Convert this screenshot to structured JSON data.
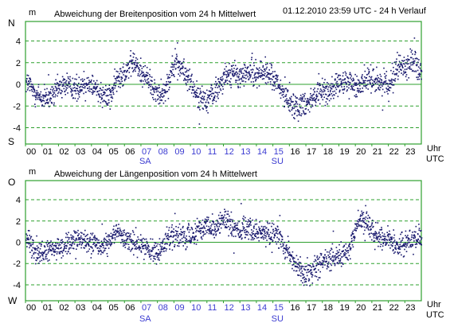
{
  "header": {
    "timestamp": "01.12.2010  23:59 UTC - 24 h Verlauf"
  },
  "colors": {
    "background": "#ffffff",
    "plot_border": "#2ea02e",
    "grid_dashed": "#2ea02e",
    "zero_line": "#2ea02e",
    "points": "#1a1a6e",
    "axis_text": "#000000",
    "weekend_text": "#3b3bd1"
  },
  "chart_data": [
    {
      "type": "scatter",
      "title": "Abweichung der Breitenposition vom 24 h Mittelwert",
      "ylabel": "m",
      "direction_top": "N",
      "direction_bottom": "S",
      "xlabel": [
        "Uhr",
        "UTC"
      ],
      "xlim": [
        0,
        24
      ],
      "ylim": [
        -5.5,
        5.8
      ],
      "yticks": [
        4,
        2,
        0,
        -2,
        -4
      ],
      "gridlines": [
        4,
        2,
        0,
        -2,
        -4
      ],
      "xticks": [
        "00",
        "01",
        "02",
        "03",
        "04",
        "05",
        "06",
        "07",
        "08",
        "09",
        "10",
        "11",
        "12",
        "13",
        "14",
        "15",
        "16",
        "17",
        "18",
        "19",
        "20",
        "21",
        "22",
        "23"
      ],
      "weekend_hours": [
        7,
        8,
        9,
        10,
        11,
        12,
        13,
        14,
        15
      ],
      "day_markers": [
        {
          "hour": 7,
          "label": "SA"
        },
        {
          "hour": 15,
          "label": "SU"
        }
      ],
      "series": [
        {
          "trend": [
            [
              0.0,
              0.4
            ],
            [
              0.5,
              -0.6
            ],
            [
              1.0,
              -1.3
            ],
            [
              1.5,
              -1.2
            ],
            [
              2.0,
              -0.2
            ],
            [
              2.5,
              0.1
            ],
            [
              3.0,
              -0.4
            ],
            [
              3.5,
              0.2
            ],
            [
              4.0,
              0.0
            ],
            [
              4.5,
              -0.6
            ],
            [
              5.0,
              -1.2
            ],
            [
              5.5,
              0.4
            ],
            [
              6.0,
              1.4
            ],
            [
              6.5,
              2.0
            ],
            [
              7.0,
              1.2
            ],
            [
              7.5,
              0.3
            ],
            [
              8.0,
              -1.0
            ],
            [
              8.5,
              -0.2
            ],
            [
              9.0,
              2.2
            ],
            [
              9.5,
              1.3
            ],
            [
              10.0,
              0.2
            ],
            [
              10.5,
              -1.4
            ],
            [
              11.0,
              -1.2
            ],
            [
              11.5,
              -0.6
            ],
            [
              12.0,
              0.8
            ],
            [
              12.5,
              1.1
            ],
            [
              13.0,
              0.7
            ],
            [
              13.5,
              1.2
            ],
            [
              14.0,
              1.0
            ],
            [
              14.5,
              1.3
            ],
            [
              15.0,
              0.6
            ],
            [
              15.5,
              -0.6
            ],
            [
              16.0,
              -1.6
            ],
            [
              16.5,
              -2.0
            ],
            [
              17.0,
              -1.6
            ],
            [
              17.5,
              -1.0
            ],
            [
              18.0,
              -0.6
            ],
            [
              18.5,
              -0.5
            ],
            [
              19.0,
              0.0
            ],
            [
              19.5,
              0.3
            ],
            [
              20.0,
              -0.2
            ],
            [
              20.5,
              0.4
            ],
            [
              21.0,
              0.6
            ],
            [
              21.5,
              0.2
            ],
            [
              22.0,
              0.0
            ],
            [
              22.5,
              1.8
            ],
            [
              23.0,
              1.6
            ],
            [
              23.5,
              2.4
            ],
            [
              24.0,
              1.0
            ]
          ],
          "spread": 0.85,
          "points_per_hour": 75
        }
      ]
    },
    {
      "type": "scatter",
      "title": "Abweichung der Längenposition vom 24 h Mittelwert",
      "ylabel": "m",
      "direction_top": "O",
      "direction_bottom": "W",
      "xlabel": [
        "Uhr",
        "UTC"
      ],
      "xlim": [
        0,
        24
      ],
      "ylim": [
        -5.5,
        5.8
      ],
      "yticks": [
        4,
        2,
        0,
        -2,
        -4
      ],
      "gridlines": [
        4,
        2,
        0,
        -2,
        -4
      ],
      "xticks": [
        "00",
        "01",
        "02",
        "03",
        "04",
        "05",
        "06",
        "07",
        "08",
        "09",
        "10",
        "11",
        "12",
        "13",
        "14",
        "15",
        "16",
        "17",
        "18",
        "19",
        "20",
        "21",
        "22",
        "23"
      ],
      "weekend_hours": [
        7,
        8,
        9,
        10,
        11,
        12,
        13,
        14,
        15
      ],
      "day_markers": [
        {
          "hour": 7,
          "label": "SA"
        },
        {
          "hour": 15,
          "label": "SU"
        }
      ],
      "series": [
        {
          "trend": [
            [
              0.0,
              0.4
            ],
            [
              0.5,
              -0.6
            ],
            [
              1.0,
              -1.0
            ],
            [
              1.5,
              -0.7
            ],
            [
              2.0,
              -0.6
            ],
            [
              2.5,
              -0.2
            ],
            [
              3.0,
              0.3
            ],
            [
              3.5,
              0.2
            ],
            [
              4.0,
              0.2
            ],
            [
              4.5,
              -0.4
            ],
            [
              5.0,
              0.2
            ],
            [
              5.5,
              0.8
            ],
            [
              6.0,
              0.4
            ],
            [
              6.5,
              0.0
            ],
            [
              7.0,
              -0.2
            ],
            [
              7.5,
              -0.7
            ],
            [
              8.0,
              -1.0
            ],
            [
              8.5,
              0.2
            ],
            [
              9.0,
              0.6
            ],
            [
              9.5,
              0.4
            ],
            [
              10.0,
              0.6
            ],
            [
              10.5,
              1.2
            ],
            [
              11.0,
              1.8
            ],
            [
              11.5,
              1.2
            ],
            [
              12.0,
              2.2
            ],
            [
              12.5,
              1.6
            ],
            [
              13.0,
              1.2
            ],
            [
              13.5,
              1.4
            ],
            [
              14.0,
              1.0
            ],
            [
              14.5,
              0.8
            ],
            [
              15.0,
              0.9
            ],
            [
              15.5,
              0.4
            ],
            [
              16.0,
              -1.2
            ],
            [
              16.5,
              -2.4
            ],
            [
              17.0,
              -3.2
            ],
            [
              17.5,
              -2.5
            ],
            [
              18.0,
              -1.8
            ],
            [
              18.5,
              -1.5
            ],
            [
              19.0,
              -1.2
            ],
            [
              19.5,
              -1.0
            ],
            [
              20.0,
              1.6
            ],
            [
              20.5,
              2.2
            ],
            [
              21.0,
              1.2
            ],
            [
              21.5,
              0.4
            ],
            [
              22.0,
              0.5
            ],
            [
              22.5,
              -0.3
            ],
            [
              23.0,
              0.0
            ],
            [
              23.5,
              0.5
            ],
            [
              24.0,
              0.4
            ]
          ],
          "spread": 0.8,
          "points_per_hour": 75
        }
      ]
    }
  ]
}
